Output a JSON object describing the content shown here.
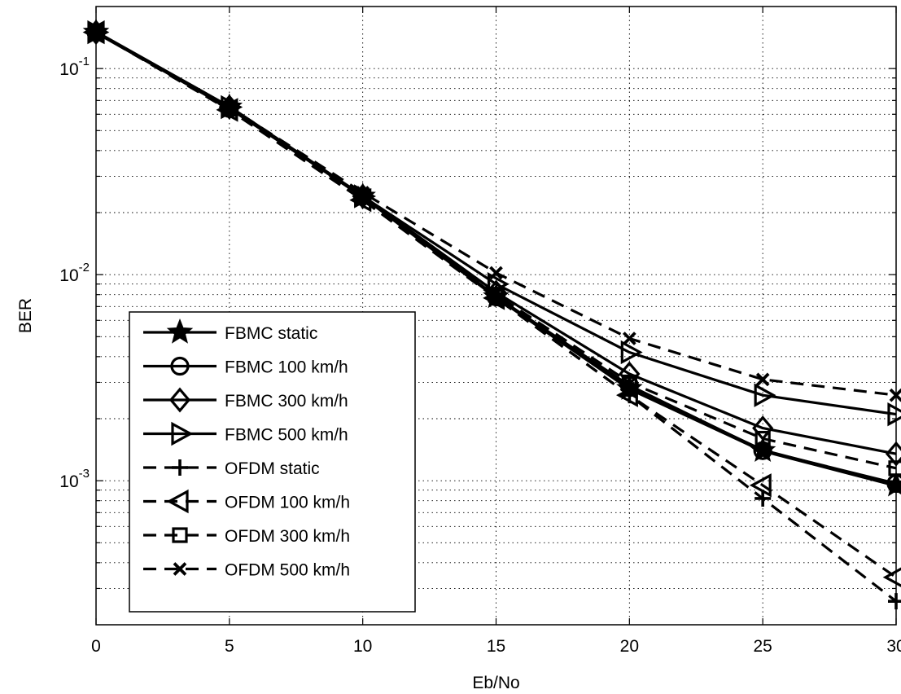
{
  "chart_data": {
    "type": "line",
    "xlabel": "Eb/No",
    "ylabel": "BER",
    "x": [
      0,
      5,
      10,
      15,
      20,
      25,
      30
    ],
    "xlim": [
      0,
      30
    ],
    "ylim": [
      0.0002,
      0.2
    ],
    "yscale": "log",
    "xticks": [
      "0",
      "5",
      "10",
      "15",
      "20",
      "25",
      "30"
    ],
    "yticks": [
      {
        "value": 0.001,
        "base": "10",
        "exp": "-3"
      },
      {
        "value": 0.01,
        "base": "10",
        "exp": "-2"
      },
      {
        "value": 0.1,
        "base": "10",
        "exp": "-1"
      }
    ],
    "grid": true,
    "legend_position": "bottom-left",
    "series": [
      {
        "name": "FBMC static",
        "style": "solid",
        "marker": "star",
        "values": [
          0.15,
          0.065,
          0.024,
          0.0078,
          0.0028,
          0.0014,
          0.00095
        ]
      },
      {
        "name": "FBMC 100 km/h",
        "style": "solid",
        "marker": "circle",
        "values": [
          0.15,
          0.064,
          0.024,
          0.0078,
          0.0029,
          0.0014,
          0.00097
        ]
      },
      {
        "name": "FBMC 300 km/h",
        "style": "solid",
        "marker": "diamond",
        "values": [
          0.15,
          0.065,
          0.024,
          0.0082,
          0.0033,
          0.0018,
          0.00135
        ]
      },
      {
        "name": "FBMC 500 km/h",
        "style": "solid",
        "marker": "triangle-right",
        "values": [
          0.15,
          0.065,
          0.024,
          0.009,
          0.0042,
          0.0026,
          0.0021
        ]
      },
      {
        "name": "OFDM static",
        "style": "dashed",
        "marker": "plus",
        "values": [
          0.15,
          0.063,
          0.023,
          0.0077,
          0.0026,
          0.00082,
          0.00026
        ]
      },
      {
        "name": "OFDM 100 km/h",
        "style": "dashed",
        "marker": "triangle-left",
        "values": [
          0.15,
          0.063,
          0.023,
          0.0077,
          0.0026,
          0.00095,
          0.00034
        ]
      },
      {
        "name": "OFDM 300 km/h",
        "style": "dashed",
        "marker": "square",
        "values": [
          0.15,
          0.064,
          0.024,
          0.008,
          0.003,
          0.0016,
          0.00115
        ]
      },
      {
        "name": "OFDM 500 km/h",
        "style": "dashed",
        "marker": "x",
        "values": [
          0.15,
          0.065,
          0.025,
          0.0102,
          0.0049,
          0.0031,
          0.0026
        ]
      }
    ]
  }
}
